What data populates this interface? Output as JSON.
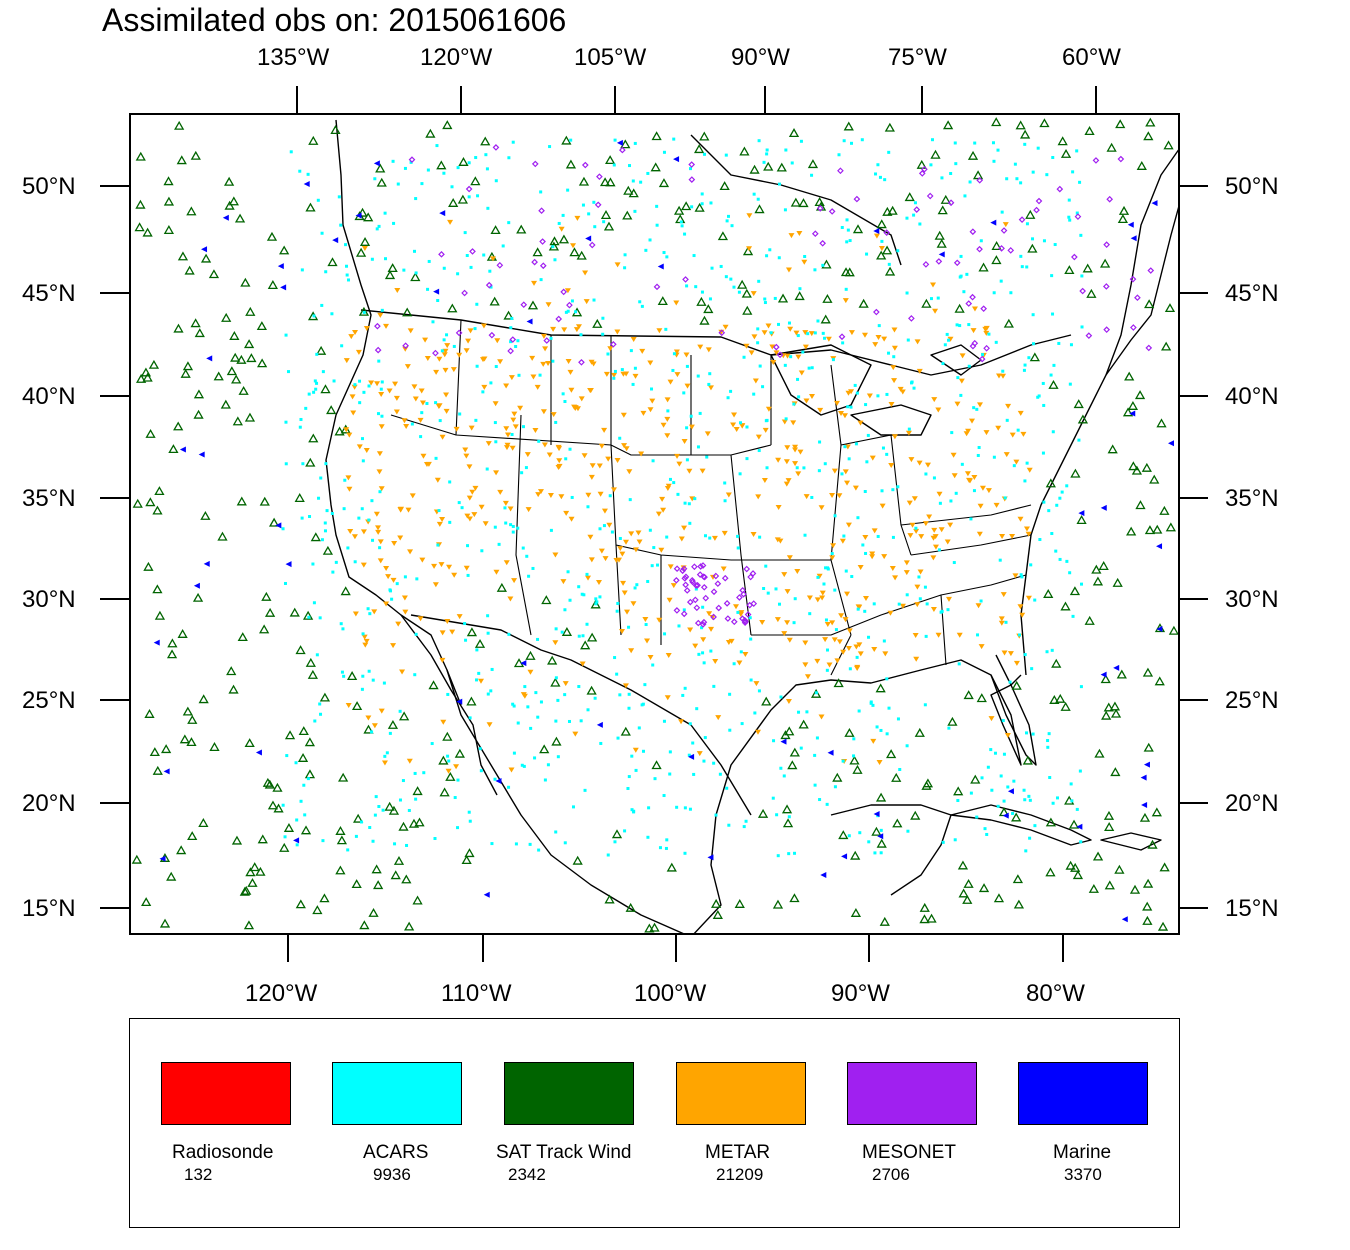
{
  "title": "Assimilated obs on: 2015061606",
  "top_lon_labels": [
    "135°W",
    "120°W",
    "105°W",
    "90°W",
    "75°W",
    "60°W"
  ],
  "bottom_lon_labels": [
    "120°W",
    "110°W",
    "100°W",
    "90°W",
    "80°W"
  ],
  "lat_labels": [
    "50°N",
    "45°N",
    "40°N",
    "35°N",
    "30°N",
    "25°N",
    "20°N",
    "15°N"
  ],
  "legend": [
    {
      "name": "Radiosonde",
      "count": "132",
      "color": "#ff0000"
    },
    {
      "name": "ACARS",
      "count": "9936",
      "color": "#00ffff"
    },
    {
      "name": "SAT Track Wind",
      "count": "2342",
      "color": "#006400"
    },
    {
      "name": "METAR",
      "count": "21209",
      "color": "#ffa500"
    },
    {
      "name": "MESONET",
      "count": "2706",
      "color": "#a020f0"
    },
    {
      "name": "Marine",
      "count": "3370",
      "color": "#0000ff"
    }
  ],
  "map": {
    "projection": "Lambert conformal (CONUS)",
    "lat_range": [
      14,
      53
    ],
    "lon_range": [
      -128,
      -57
    ],
    "observation_types": [
      "Radiosonde",
      "ACARS",
      "SAT Track Wind",
      "METAR",
      "MESONET",
      "Marine"
    ]
  }
}
